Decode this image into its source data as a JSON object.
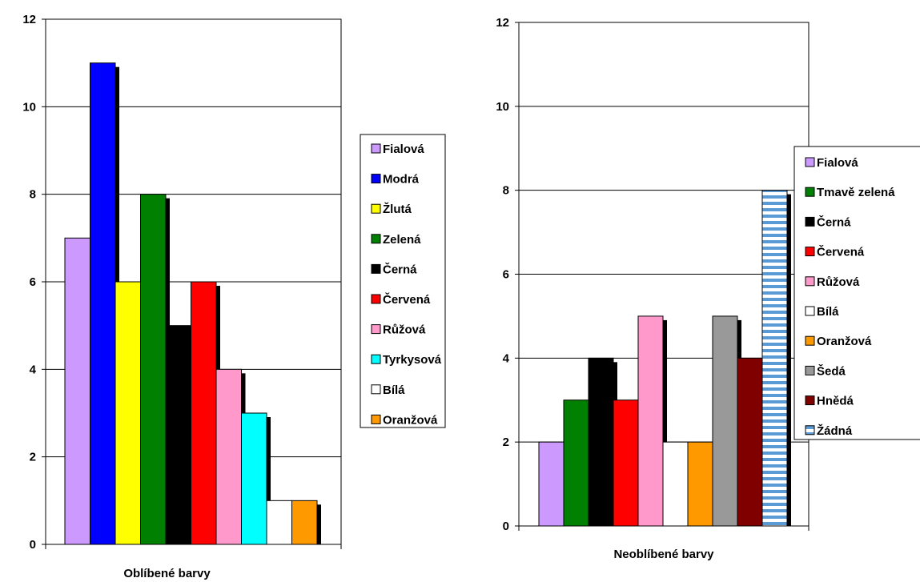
{
  "chart_data": [
    {
      "type": "bar",
      "title": "Oblíbené barvy",
      "xlabel": "",
      "ylabel": "",
      "ylim": [
        0,
        12
      ],
      "yticks": [
        "0",
        "2",
        "4",
        "6",
        "8",
        "10",
        "12"
      ],
      "grid": true,
      "legend_position": "right",
      "categories": [
        "Fialová",
        "Modrá",
        "Žlutá",
        "Zelená",
        "Černá",
        "Červená",
        "Růžová",
        "Tyrkysová",
        "Bílá",
        "Oranžová"
      ],
      "values": [
        7,
        11,
        6,
        8,
        5,
        6,
        4,
        3,
        1,
        1
      ],
      "colors": [
        "#cc99ff",
        "#0000ff",
        "#ffff00",
        "#008000",
        "#000000",
        "#ff0000",
        "#ff99cc",
        "#00ffff",
        "#ffffff",
        "#ff9900"
      ]
    },
    {
      "type": "bar",
      "title": "Neoblíbené barvy",
      "xlabel": "",
      "ylabel": "",
      "ylim": [
        0,
        12
      ],
      "yticks": [
        "0",
        "2",
        "4",
        "6",
        "8",
        "10",
        "12"
      ],
      "grid": true,
      "legend_position": "right",
      "categories": [
        "Fialová",
        "Tmavě zelená",
        "Černá",
        "Červená",
        "Růžová",
        "Bílá",
        "Oranžová",
        "Šedá",
        "Hnědá",
        "Žádná"
      ],
      "values": [
        2,
        3,
        4,
        3,
        5,
        2,
        2,
        5,
        4,
        8
      ],
      "colors": [
        "#cc99ff",
        "#008000",
        "#000000",
        "#ff0000",
        "#ff99cc",
        "#ffffff",
        "#ff9900",
        "#999999",
        "#800000",
        "striped"
      ]
    }
  ]
}
